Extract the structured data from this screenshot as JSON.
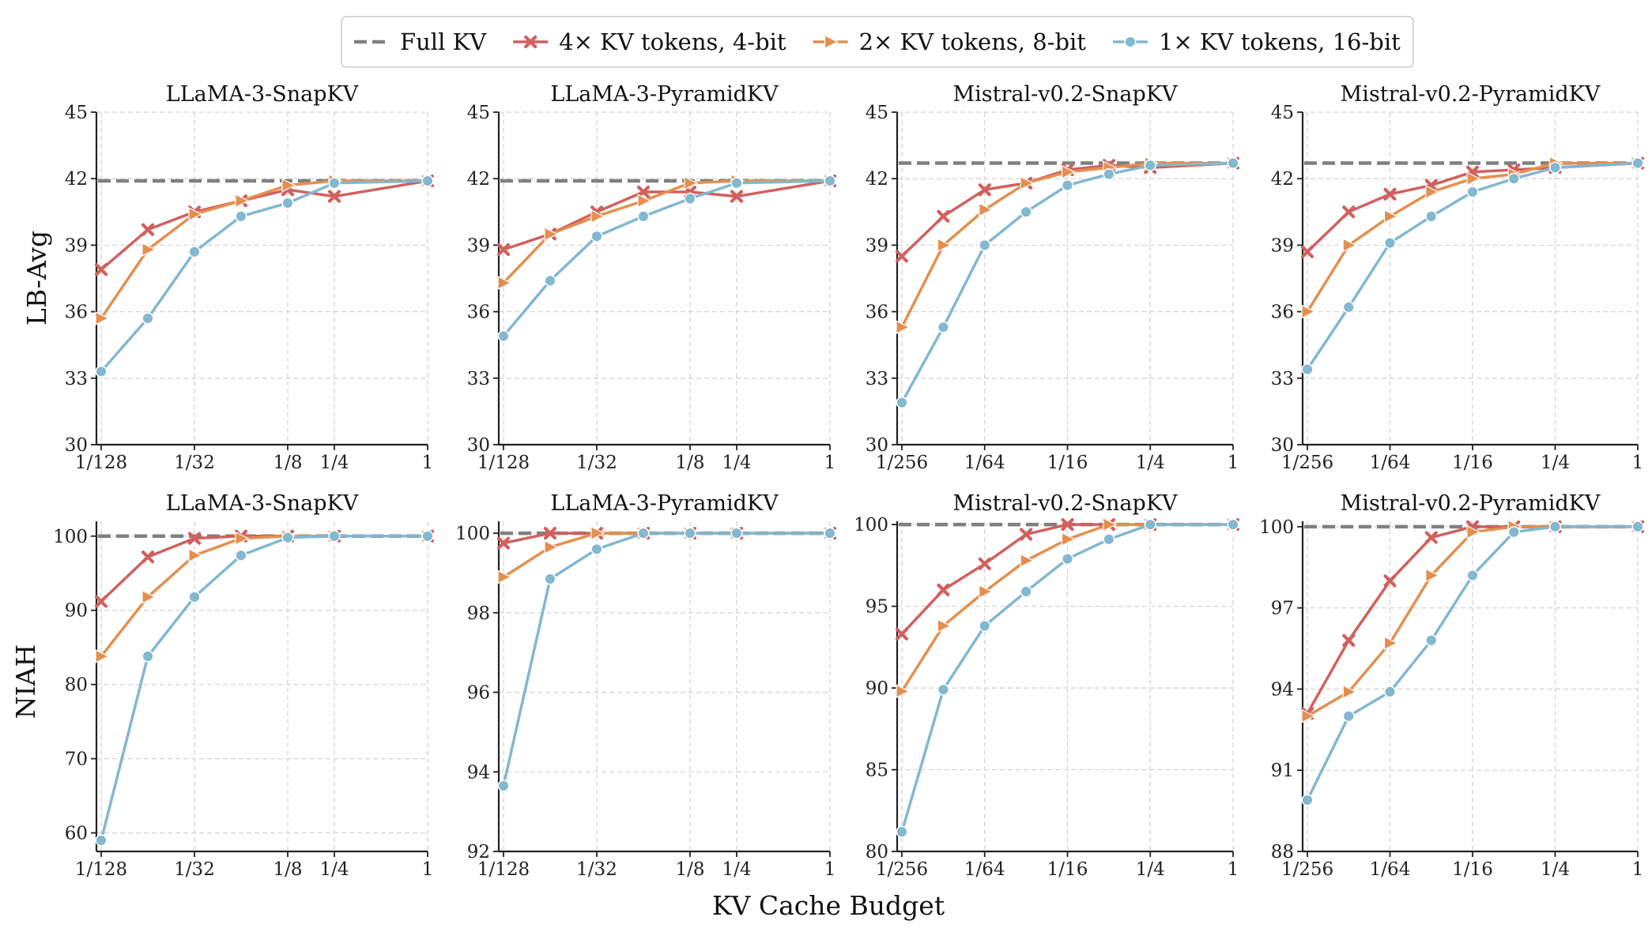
{
  "figure": {
    "xlabel": "KV Cache Budget",
    "row_ylabels": [
      "LB-Avg",
      "NIAH"
    ]
  },
  "legend": {
    "entries": [
      {
        "label": "Full KV",
        "color": "#808080",
        "marker": "dash"
      },
      {
        "label": "4× KV tokens, 4-bit",
        "color": "#D1605E",
        "marker": "x"
      },
      {
        "label": "2× KV tokens, 8-bit",
        "color": "#E48F4F",
        "marker": "triangle-right"
      },
      {
        "label": "1× KV tokens, 16-bit",
        "color": "#82B8D0",
        "marker": "circle"
      }
    ]
  },
  "chart_data": [
    {
      "type": "line",
      "title": "LLaMA-3-SnapKV",
      "ylabel": "LB-Avg",
      "xscale": "log2",
      "xlim_log2": [
        -7,
        0
      ],
      "ylim": [
        30,
        45
      ],
      "yticks": [
        30,
        33,
        36,
        39,
        42,
        45
      ],
      "xticks": [
        {
          "v": -7,
          "label": "1/128"
        },
        {
          "v": -5,
          "label": "1/32"
        },
        {
          "v": -3,
          "label": "1/8"
        },
        {
          "v": -2,
          "label": "1/4"
        },
        {
          "v": 0,
          "label": "1"
        }
      ],
      "x_log2": [
        -7,
        -6,
        -5,
        -4,
        -3,
        -2,
        0
      ],
      "full_kv": 41.9,
      "series": [
        {
          "name": "4× KV tokens, 4-bit",
          "values": [
            37.9,
            39.7,
            40.5,
            41.0,
            41.5,
            41.2,
            41.9
          ]
        },
        {
          "name": "2× KV tokens, 8-bit",
          "values": [
            35.7,
            38.8,
            40.4,
            41.0,
            41.7,
            41.9,
            41.9
          ]
        },
        {
          "name": "1× KV tokens, 16-bit",
          "values": [
            33.3,
            35.7,
            38.7,
            40.3,
            40.9,
            41.8,
            41.9
          ]
        }
      ]
    },
    {
      "type": "line",
      "title": "LLaMA-3-PyramidKV",
      "ylabel": "LB-Avg",
      "xscale": "log2",
      "xlim_log2": [
        -7,
        0
      ],
      "ylim": [
        30,
        45
      ],
      "yticks": [
        30,
        33,
        36,
        39,
        42,
        45
      ],
      "xticks": [
        {
          "v": -7,
          "label": "1/128"
        },
        {
          "v": -5,
          "label": "1/32"
        },
        {
          "v": -3,
          "label": "1/8"
        },
        {
          "v": -2,
          "label": "1/4"
        },
        {
          "v": 0,
          "label": "1"
        }
      ],
      "x_log2": [
        -7,
        -6,
        -5,
        -4,
        -3,
        -2,
        0
      ],
      "full_kv": 41.9,
      "series": [
        {
          "name": "4× KV tokens, 4-bit",
          "values": [
            38.8,
            39.5,
            40.5,
            41.4,
            41.4,
            41.2,
            41.9
          ]
        },
        {
          "name": "2× KV tokens, 8-bit",
          "values": [
            37.3,
            39.5,
            40.3,
            41.0,
            41.8,
            41.9,
            41.9
          ]
        },
        {
          "name": "1× KV tokens, 16-bit",
          "values": [
            34.9,
            37.4,
            39.4,
            40.3,
            41.1,
            41.8,
            41.9
          ]
        }
      ]
    },
    {
      "type": "line",
      "title": "Mistral-v0.2-SnapKV",
      "ylabel": "LB-Avg",
      "xscale": "log2",
      "xlim_log2": [
        -8,
        0
      ],
      "ylim": [
        30,
        45
      ],
      "yticks": [
        30,
        33,
        36,
        39,
        42,
        45
      ],
      "xticks": [
        {
          "v": -8,
          "label": "1/256"
        },
        {
          "v": -6,
          "label": "1/64"
        },
        {
          "v": -4,
          "label": "1/16"
        },
        {
          "v": -2,
          "label": "1/4"
        },
        {
          "v": 0,
          "label": "1"
        }
      ],
      "x_log2": [
        -8,
        -7,
        -6,
        -5,
        -4,
        -3,
        -2,
        0
      ],
      "full_kv": 42.7,
      "series": [
        {
          "name": "4× KV tokens, 4-bit",
          "values": [
            38.5,
            40.3,
            41.5,
            41.8,
            42.4,
            42.6,
            42.5,
            42.7
          ]
        },
        {
          "name": "2× KV tokens, 8-bit",
          "values": [
            35.3,
            39.0,
            40.6,
            41.8,
            42.3,
            42.5,
            42.7,
            42.7
          ]
        },
        {
          "name": "1× KV tokens, 16-bit",
          "values": [
            31.9,
            35.3,
            39.0,
            40.5,
            41.7,
            42.2,
            42.6,
            42.7
          ]
        }
      ]
    },
    {
      "type": "line",
      "title": "Mistral-v0.2-PyramidKV",
      "ylabel": "LB-Avg",
      "xscale": "log2",
      "xlim_log2": [
        -8,
        0
      ],
      "ylim": [
        30,
        45
      ],
      "yticks": [
        30,
        33,
        36,
        39,
        42,
        45
      ],
      "xticks": [
        {
          "v": -8,
          "label": "1/256"
        },
        {
          "v": -6,
          "label": "1/64"
        },
        {
          "v": -4,
          "label": "1/16"
        },
        {
          "v": -2,
          "label": "1/4"
        },
        {
          "v": 0,
          "label": "1"
        }
      ],
      "x_log2": [
        -8,
        -7,
        -6,
        -5,
        -4,
        -3,
        -2,
        0
      ],
      "full_kv": 42.7,
      "series": [
        {
          "name": "4× KV tokens, 4-bit",
          "values": [
            38.7,
            40.5,
            41.3,
            41.7,
            42.3,
            42.4,
            42.5,
            42.7
          ]
        },
        {
          "name": "2× KV tokens, 8-bit",
          "values": [
            36.0,
            39.0,
            40.3,
            41.4,
            42.0,
            42.2,
            42.7,
            42.7
          ]
        },
        {
          "name": "1× KV tokens, 16-bit",
          "values": [
            33.4,
            36.2,
            39.1,
            40.3,
            41.4,
            42.0,
            42.5,
            42.7
          ]
        }
      ]
    },
    {
      "type": "line",
      "title": "LLaMA-3-SnapKV",
      "ylabel": "NIAH",
      "xscale": "log2",
      "xlim_log2": [
        -7,
        0
      ],
      "ylim": [
        57.5,
        102
      ],
      "yticks": [
        60,
        70,
        80,
        90,
        100
      ],
      "xticks": [
        {
          "v": -7,
          "label": "1/128"
        },
        {
          "v": -5,
          "label": "1/32"
        },
        {
          "v": -3,
          "label": "1/8"
        },
        {
          "v": -2,
          "label": "1/4"
        },
        {
          "v": 0,
          "label": "1"
        }
      ],
      "x_log2": [
        -7,
        -6,
        -5,
        -4,
        -3,
        -2,
        0
      ],
      "full_kv": 100.0,
      "series": [
        {
          "name": "4× KV tokens, 4-bit",
          "values": [
            91.2,
            97.2,
            99.7,
            100.0,
            100.0,
            100.0,
            100.0
          ]
        },
        {
          "name": "2× KV tokens, 8-bit",
          "values": [
            83.8,
            91.8,
            97.4,
            99.7,
            100.0,
            100.0,
            100.0
          ]
        },
        {
          "name": "1× KV tokens, 16-bit",
          "values": [
            59.0,
            83.8,
            91.8,
            97.4,
            99.8,
            100.0,
            100.0
          ]
        }
      ]
    },
    {
      "type": "line",
      "title": "LLaMA-3-PyramidKV",
      "ylabel": "NIAH",
      "xscale": "log2",
      "xlim_log2": [
        -7,
        0
      ],
      "ylim": [
        92,
        100.3
      ],
      "yticks": [
        92,
        94,
        96,
        98,
        100
      ],
      "xticks": [
        {
          "v": -7,
          "label": "1/128"
        },
        {
          "v": -5,
          "label": "1/32"
        },
        {
          "v": -3,
          "label": "1/8"
        },
        {
          "v": -2,
          "label": "1/4"
        },
        {
          "v": 0,
          "label": "1"
        }
      ],
      "x_log2": [
        -7,
        -6,
        -5,
        -4,
        -3,
        -2,
        0
      ],
      "full_kv": 100.0,
      "series": [
        {
          "name": "4× KV tokens, 4-bit",
          "values": [
            99.75,
            100.0,
            100.0,
            100.0,
            100.0,
            100.0,
            100.0
          ]
        },
        {
          "name": "2× KV tokens, 8-bit",
          "values": [
            98.9,
            99.65,
            100.0,
            100.0,
            100.0,
            100.0,
            100.0
          ]
        },
        {
          "name": "1× KV tokens, 16-bit",
          "values": [
            93.65,
            98.85,
            99.6,
            100.0,
            100.0,
            100.0,
            100.0
          ]
        }
      ]
    },
    {
      "type": "line",
      "title": "Mistral-v0.2-SnapKV",
      "ylabel": "NIAH",
      "xscale": "log2",
      "xlim_log2": [
        -8,
        0
      ],
      "ylim": [
        80,
        100.2
      ],
      "yticks": [
        80,
        85,
        90,
        95,
        100
      ],
      "xticks": [
        {
          "v": -8,
          "label": "1/256"
        },
        {
          "v": -6,
          "label": "1/64"
        },
        {
          "v": -4,
          "label": "1/16"
        },
        {
          "v": -2,
          "label": "1/4"
        },
        {
          "v": 0,
          "label": "1"
        }
      ],
      "x_log2": [
        -8,
        -7,
        -6,
        -5,
        -4,
        -3,
        -2,
        0
      ],
      "full_kv": 100.0,
      "series": [
        {
          "name": "4× KV tokens, 4-bit",
          "values": [
            93.3,
            96.0,
            97.6,
            99.4,
            100.0,
            100.0,
            100.0,
            100.0
          ]
        },
        {
          "name": "2× KV tokens, 8-bit",
          "values": [
            89.8,
            93.8,
            95.9,
            97.8,
            99.1,
            100.0,
            100.0,
            100.0
          ]
        },
        {
          "name": "1× KV tokens, 16-bit",
          "values": [
            81.2,
            89.9,
            93.8,
            95.9,
            97.9,
            99.1,
            100.0,
            100.0
          ]
        }
      ]
    },
    {
      "type": "line",
      "title": "Mistral-v0.2-PyramidKV",
      "ylabel": "NIAH",
      "xscale": "log2",
      "xlim_log2": [
        -8,
        0
      ],
      "ylim": [
        88,
        100.2
      ],
      "yticks": [
        88,
        91,
        94,
        97,
        100
      ],
      "xticks": [
        {
          "v": -8,
          "label": "1/256"
        },
        {
          "v": -6,
          "label": "1/64"
        },
        {
          "v": -4,
          "label": "1/16"
        },
        {
          "v": -2,
          "label": "1/4"
        },
        {
          "v": 0,
          "label": "1"
        }
      ],
      "x_log2": [
        -8,
        -7,
        -6,
        -5,
        -4,
        -3,
        -2,
        0
      ],
      "full_kv": 100.0,
      "series": [
        {
          "name": "4× KV tokens, 4-bit",
          "values": [
            93.1,
            95.8,
            98.0,
            99.6,
            100.0,
            100.0,
            100.0,
            100.0
          ]
        },
        {
          "name": "2× KV tokens, 8-bit",
          "values": [
            93.0,
            93.9,
            95.7,
            98.2,
            99.8,
            100.0,
            100.0,
            100.0
          ]
        },
        {
          "name": "1× KV tokens, 16-bit",
          "values": [
            89.9,
            93.0,
            93.9,
            95.8,
            98.2,
            99.8,
            100.0,
            100.0
          ]
        }
      ]
    }
  ]
}
